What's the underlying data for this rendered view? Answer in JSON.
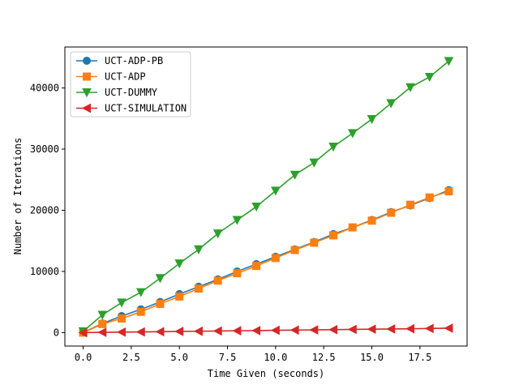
{
  "chart_data": {
    "type": "line",
    "title": "",
    "xlabel": "Time Given (seconds)",
    "ylabel": "Number of Iterations",
    "xlim": [
      -0.95,
      19.95
    ],
    "ylim": [
      -2200,
      46700
    ],
    "x": [
      0,
      1,
      2,
      3,
      4,
      5,
      6,
      7,
      8,
      9,
      10,
      11,
      12,
      13,
      14,
      15,
      16,
      17,
      18,
      19
    ],
    "xticks": [
      0.0,
      2.5,
      5.0,
      7.5,
      10.0,
      12.5,
      15.0,
      17.5
    ],
    "xtick_labels": [
      "0.0",
      "2.5",
      "5.0",
      "7.5",
      "10.0",
      "12.5",
      "15.0",
      "17.5"
    ],
    "yticks": [
      0,
      10000,
      20000,
      30000,
      40000
    ],
    "ytick_labels": [
      "0",
      "10000",
      "20000",
      "30000",
      "40000"
    ],
    "grid": false,
    "legend_position": "top-left",
    "series": [
      {
        "name": "UCT-ADP-PB",
        "color": "#1f77b4",
        "marker": "circle",
        "values": [
          0,
          1500,
          2700,
          3800,
          5000,
          6300,
          7500,
          8700,
          10000,
          11200,
          12400,
          13600,
          14800,
          16100,
          17200,
          18400,
          19700,
          20800,
          22000,
          23300
        ]
      },
      {
        "name": "UCT-ADP",
        "color": "#ff7f0e",
        "marker": "square",
        "values": [
          0,
          1400,
          2300,
          3400,
          4700,
          5900,
          7200,
          8500,
          9700,
          10900,
          12200,
          13500,
          14700,
          15900,
          17200,
          18300,
          19600,
          20900,
          22100,
          23100
        ]
      },
      {
        "name": "UCT-DUMMY",
        "color": "#2ca02c",
        "marker": "triangle-down",
        "values": [
          200,
          2900,
          4900,
          6600,
          8900,
          11300,
          13600,
          16200,
          18400,
          20600,
          23200,
          25800,
          27800,
          30400,
          32600,
          34900,
          37500,
          40100,
          41800,
          44400
        ]
      },
      {
        "name": "UCT-SIMULATION",
        "color": "#d62728",
        "marker": "triangle-left",
        "values": [
          0,
          50,
          80,
          110,
          150,
          190,
          220,
          260,
          300,
          330,
          370,
          410,
          440,
          480,
          520,
          560,
          590,
          630,
          670,
          720
        ]
      }
    ]
  }
}
